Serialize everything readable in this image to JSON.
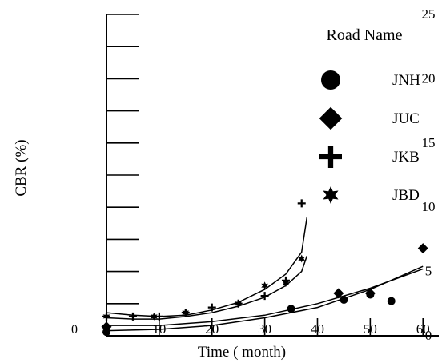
{
  "chart_data": {
    "type": "scatter",
    "title": "",
    "xlabel": "Time (  month)",
    "ylabel": "CBR  (%)",
    "xlim": [
      0,
      63
    ],
    "ylim": [
      0,
      25
    ],
    "x_ticks": [
      10,
      20,
      30,
      40,
      50,
      60
    ],
    "x_tick_labels": [
      "10",
      "20",
      "30",
      "40",
      "50",
      "60"
    ],
    "y_ticks": [
      0,
      5,
      10,
      15,
      20,
      25
    ],
    "y_tick_labels": [
      "0",
      "5",
      "10",
      "15",
      "20",
      "25"
    ],
    "origin_label": "0",
    "grid": false,
    "legend_title": "Road Name",
    "legend_position": "top-right",
    "series": [
      {
        "name": "JNH",
        "marker": "circle",
        "x": [
          0,
          35,
          45,
          50,
          54
        ],
        "y": [
          0.3,
          2.1,
          2.8,
          3.2,
          2.7
        ],
        "fit_x": [
          0,
          10,
          20,
          30,
          40,
          50,
          60
        ],
        "fit_y": [
          0.8,
          0.8,
          1.1,
          1.6,
          2.5,
          3.7,
          5.2
        ]
      },
      {
        "name": "JUC",
        "marker": "diamond",
        "x": [
          0,
          44,
          50,
          60
        ],
        "y": [
          0.7,
          3.3,
          3.3,
          6.8
        ],
        "fit_x": [
          0,
          10,
          20,
          30,
          40,
          50,
          60
        ],
        "fit_y": [
          0.4,
          0.5,
          0.8,
          1.4,
          2.2,
          3.6,
          5.4
        ]
      },
      {
        "name": "JKB",
        "marker": "plus",
        "x": [
          0,
          5,
          10,
          15,
          20,
          25,
          30,
          34,
          37
        ],
        "y": [
          1.5,
          1.5,
          1.5,
          1.8,
          2.2,
          2.5,
          3.1,
          4.3,
          10.3
        ],
        "fit_x": [
          0,
          5,
          10,
          15,
          20,
          25,
          30,
          34,
          37,
          38
        ],
        "fit_y": [
          1.8,
          1.6,
          1.5,
          1.6,
          2.0,
          2.6,
          3.6,
          4.8,
          6.5,
          9.2
        ]
      },
      {
        "name": "JBD",
        "marker": "star",
        "x": [
          0,
          9,
          15,
          25,
          30,
          34,
          37
        ],
        "y": [
          1.5,
          1.5,
          1.8,
          2.5,
          3.9,
          4.1,
          6.0
        ],
        "fit_x": [
          0,
          5,
          10,
          15,
          20,
          25,
          30,
          34,
          37,
          38
        ],
        "fit_y": [
          1.4,
          1.3,
          1.3,
          1.5,
          1.8,
          2.3,
          3.0,
          3.9,
          5.0,
          6.2
        ]
      }
    ]
  }
}
